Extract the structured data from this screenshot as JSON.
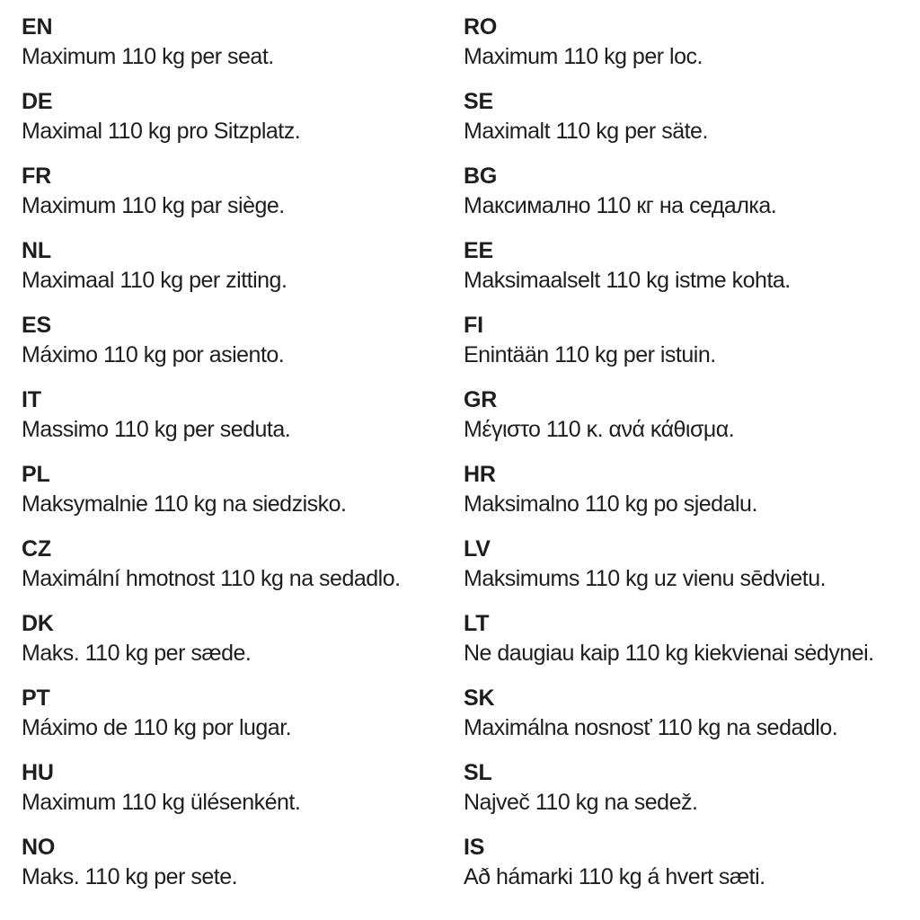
{
  "colors": {
    "background": "#ffffff",
    "text": "#1e1e1e"
  },
  "columns": {
    "left": [
      {
        "code": "EN",
        "text": "Maximum 110 kg per seat."
      },
      {
        "code": "DE",
        "text": "Maximal 110 kg pro Sitzplatz."
      },
      {
        "code": "FR",
        "text": "Maximum 110 kg par siège."
      },
      {
        "code": "NL",
        "text": "Maximaal 110 kg per zitting."
      },
      {
        "code": "ES",
        "text": "Máximo 110 kg por asiento."
      },
      {
        "code": "IT",
        "text": "Massimo 110 kg per seduta."
      },
      {
        "code": "PL",
        "text": "Maksymalnie 110 kg na siedzisko."
      },
      {
        "code": "CZ",
        "text": "Maximální hmotnost 110 kg na sedadlo."
      },
      {
        "code": "DK",
        "text": "Maks. 110 kg per sæde."
      },
      {
        "code": "PT",
        "text": "Máximo de 110 kg por lugar."
      },
      {
        "code": "HU",
        "text": "Maximum 110 kg ülésenként."
      },
      {
        "code": "NO",
        "text": "Maks. 110 kg per sete."
      }
    ],
    "right": [
      {
        "code": "RO",
        "text": "Maximum 110 kg per loc."
      },
      {
        "code": "SE",
        "text": "Maximalt 110 kg per säte."
      },
      {
        "code": "BG",
        "text": "Максимално 110 кг на седалка."
      },
      {
        "code": "EE",
        "text": "Maksimaalselt 110 kg istme kohta."
      },
      {
        "code": "FI",
        "text": "Enintään 110 kg per istuin."
      },
      {
        "code": "GR",
        "text": "Μέγιστο 110 κ. ανά κάθισμα."
      },
      {
        "code": "HR",
        "text": "Maksimalno 110 kg po sjedalu."
      },
      {
        "code": "LV",
        "text": "Maksimums 110 kg uz vienu sēdvietu."
      },
      {
        "code": "LT",
        "text": "Ne daugiau kaip 110 kg kiekvienai sėdynei."
      },
      {
        "code": "SK",
        "text": "Maximálna nosnosť 110 kg na sedadlo."
      },
      {
        "code": "SL",
        "text": "Največ 110 kg na sedež."
      },
      {
        "code": "IS",
        "text": "Að hámarki 110 kg á hvert sæti."
      }
    ]
  }
}
